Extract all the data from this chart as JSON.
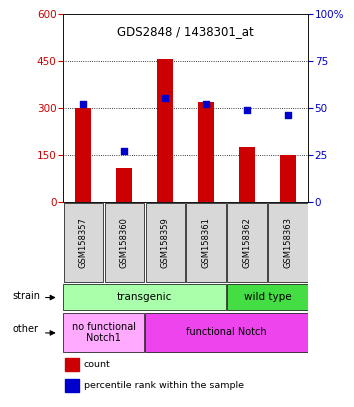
{
  "title": "GDS2848 / 1438301_at",
  "samples": [
    "GSM158357",
    "GSM158360",
    "GSM158359",
    "GSM158361",
    "GSM158362",
    "GSM158363"
  ],
  "counts": [
    300,
    108,
    455,
    320,
    175,
    150
  ],
  "percentiles": [
    52,
    27,
    55,
    52,
    49,
    46
  ],
  "ylim_left": [
    0,
    600
  ],
  "ylim_right": [
    0,
    100
  ],
  "yticks_left": [
    0,
    150,
    300,
    450,
    600
  ],
  "yticks_right": [
    0,
    25,
    50,
    75,
    100
  ],
  "bar_color": "#cc0000",
  "dot_color": "#0000cc",
  "strain_labels": [
    {
      "text": "transgenic",
      "span": [
        0,
        4
      ],
      "color": "#aaffaa"
    },
    {
      "text": "wild type",
      "span": [
        4,
        6
      ],
      "color": "#44dd44"
    }
  ],
  "other_labels": [
    {
      "text": "no functional\nNotch1",
      "span": [
        0,
        2
      ],
      "color": "#ffaaff"
    },
    {
      "text": "functional Notch",
      "span": [
        2,
        6
      ],
      "color": "#ee44ee"
    }
  ],
  "legend_items": [
    {
      "label": "count",
      "color": "#cc0000"
    },
    {
      "label": "percentile rank within the sample",
      "color": "#0000cc"
    }
  ],
  "bg_color": "#d8d8d8",
  "fig_bg": "#ffffff"
}
